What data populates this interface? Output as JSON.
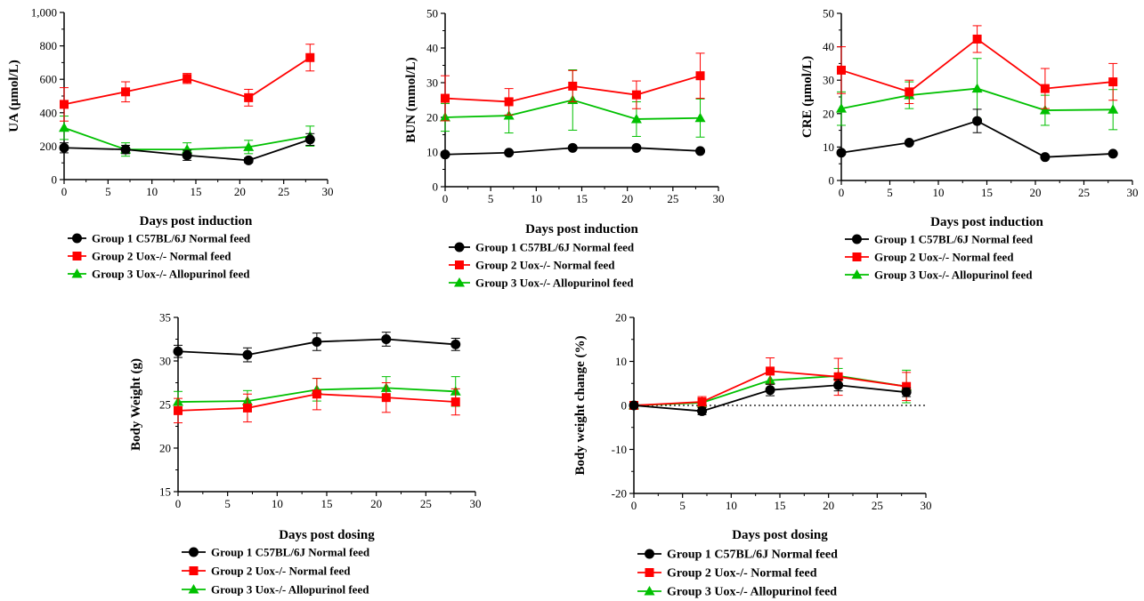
{
  "legend_labels": [
    "Group 1 C57BL/6J Normal feed",
    "Group 2 Uox-/- Normal feed",
    "Group 3 Uox-/- Allopurinol feed"
  ],
  "series_colors": [
    "#000000",
    "#ff0000",
    "#00c000"
  ],
  "chart_data": [
    {
      "type": "line",
      "ylabel": "UA (μmol/L)",
      "xlabel": "Days post induction",
      "xlim": [
        0,
        30
      ],
      "ylim": [
        0,
        1000
      ],
      "xticks": [
        "0",
        "5",
        "10",
        "15",
        "20",
        "25",
        "30"
      ],
      "yticks": [
        "0",
        "200",
        "400",
        "600",
        "800",
        "1,000"
      ],
      "x": [
        0,
        7,
        14,
        21,
        28
      ],
      "series": [
        {
          "name": "Group 1 C57BL/6J Normal feed",
          "values": [
            190,
            180,
            145,
            115,
            240
          ],
          "errors": [
            30,
            25,
            30,
            15,
            35
          ]
        },
        {
          "name": "Group 2 Uox-/- Normal feed",
          "values": [
            450,
            525,
            605,
            490,
            730
          ],
          "errors": [
            100,
            60,
            30,
            50,
            80
          ]
        },
        {
          "name": "Group 3 Uox-/- Allopurinol feed",
          "values": [
            310,
            180,
            180,
            195,
            260
          ],
          "errors": [
            70,
            40,
            40,
            40,
            60
          ]
        }
      ]
    },
    {
      "type": "line",
      "ylabel": "BUN (mmol/L)",
      "xlabel": "Days post induction",
      "xlim": [
        0,
        30
      ],
      "ylim": [
        0,
        50
      ],
      "xticks": [
        "0",
        "5",
        "10",
        "15",
        "20",
        "25",
        "30"
      ],
      "yticks": [
        "0",
        "10",
        "20",
        "30",
        "40",
        "50"
      ],
      "x": [
        0,
        7,
        14,
        21,
        28
      ],
      "series": [
        {
          "name": "Group 1 C57BL/6J Normal feed",
          "values": [
            9.3,
            9.8,
            11.2,
            11.2,
            10.3
          ],
          "errors": [
            0.4,
            0.4,
            0.4,
            0.4,
            0.4
          ]
        },
        {
          "name": "Group 2 Uox-/- Normal feed",
          "values": [
            25.5,
            24.5,
            29,
            26.5,
            32
          ],
          "errors": [
            6.5,
            3.8,
            4.5,
            4,
            6.5
          ]
        },
        {
          "name": "Group 3 Uox-/- Allopurinol feed",
          "values": [
            20,
            20.5,
            25,
            19.5,
            19.8
          ],
          "errors": [
            4,
            5,
            8.7,
            5,
            5.5
          ]
        }
      ]
    },
    {
      "type": "line",
      "ylabel": "CRE (μmol/L)",
      "xlabel": "Days post induction",
      "xlim": [
        0,
        30
      ],
      "ylim": [
        0,
        50
      ],
      "xticks": [
        "0",
        "5",
        "10",
        "15",
        "20",
        "25",
        "30"
      ],
      "yticks": [
        "0",
        "10",
        "20",
        "30",
        "40",
        "50"
      ],
      "x": [
        0,
        7,
        14,
        21,
        28
      ],
      "series": [
        {
          "name": "Group 1 C57BL/6J Normal feed",
          "values": [
            8.3,
            11.3,
            17.8,
            7,
            8
          ],
          "errors": [
            0.5,
            0.5,
            3.5,
            0.3,
            0.4
          ]
        },
        {
          "name": "Group 2 Uox-/- Normal feed",
          "values": [
            33,
            26.5,
            42.3,
            27.5,
            29.5
          ],
          "errors": [
            7,
            3.5,
            4,
            6,
            5.5
          ]
        },
        {
          "name": "Group 3 Uox-/- Allopurinol feed",
          "values": [
            21.5,
            25.5,
            27.5,
            21,
            21.2
          ],
          "errors": [
            5,
            4,
            9,
            4.5,
            6
          ]
        }
      ]
    },
    {
      "type": "line",
      "ylabel": "Body Weight (g)",
      "xlabel": "Days post dosing",
      "xlim": [
        0,
        30
      ],
      "ylim": [
        15,
        35
      ],
      "xticks": [
        "0",
        "5",
        "10",
        "15",
        "20",
        "25",
        "30"
      ],
      "yticks": [
        "15",
        "20",
        "25",
        "30",
        "35"
      ],
      "x": [
        0,
        7,
        14,
        21,
        28
      ],
      "series": [
        {
          "name": "Group 1 C57BL/6J Normal feed",
          "values": [
            31.1,
            30.7,
            32.2,
            32.5,
            31.9
          ],
          "errors": [
            0.7,
            0.8,
            1.0,
            0.8,
            0.7
          ]
        },
        {
          "name": "Group 2 Uox-/- Normal feed",
          "values": [
            24.3,
            24.6,
            26.2,
            25.8,
            25.3
          ],
          "errors": [
            1.4,
            1.6,
            1.8,
            1.7,
            1.5
          ]
        },
        {
          "name": "Group 3 Uox-/- Allopurinol feed",
          "values": [
            25.3,
            25.4,
            26.7,
            26.9,
            26.5
          ],
          "errors": [
            1.2,
            1.2,
            1.3,
            1.3,
            1.7
          ]
        }
      ]
    },
    {
      "type": "line",
      "ylabel": "Body weight change (%)",
      "xlabel": "Days post dosing",
      "xlim": [
        0,
        30
      ],
      "ylim": [
        -20,
        20
      ],
      "xticks": [
        "0",
        "5",
        "10",
        "15",
        "20",
        "25",
        "30"
      ],
      "yticks": [
        "-20",
        "-10",
        "0",
        "10",
        "20"
      ],
      "reference_line": 0,
      "x": [
        0,
        7,
        14,
        21,
        28
      ],
      "series": [
        {
          "name": "Group 1 C57BL/6J Normal feed",
          "values": [
            0,
            -1.3,
            3.5,
            4.6,
            3
          ],
          "errors": [
            0,
            0.8,
            1.3,
            1.3,
            1.0
          ]
        },
        {
          "name": "Group 2 Uox-/- Normal feed",
          "values": [
            0,
            0.8,
            7.8,
            6.5,
            4.3
          ],
          "errors": [
            0,
            1.2,
            3.0,
            4.2,
            3.2
          ]
        },
        {
          "name": "Group 3 Uox-/- Allopurinol feed",
          "values": [
            0,
            0.6,
            5.7,
            6.7,
            4.3
          ],
          "errors": [
            0,
            0.8,
            2.2,
            1.7,
            3.7
          ]
        }
      ]
    }
  ]
}
